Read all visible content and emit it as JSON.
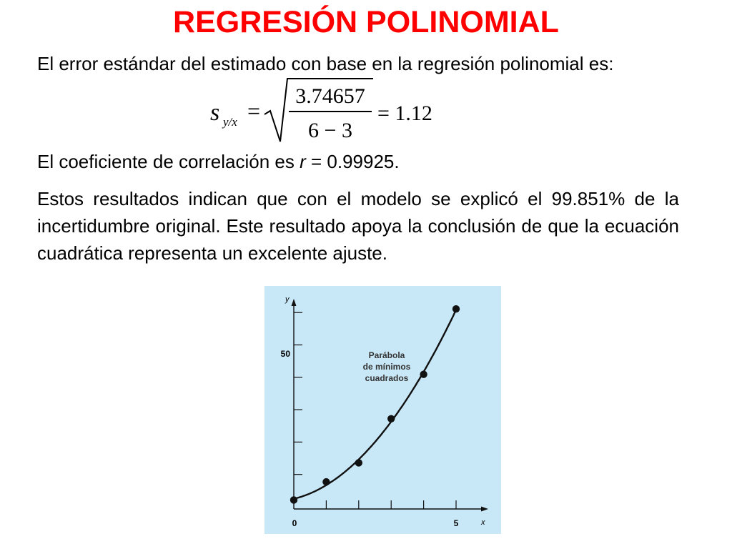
{
  "slide": {
    "title": "REGRESIÓN POLINOMIAL",
    "p1": "El error estándar del estimado con base en la regresión polinomial es:",
    "p2_prefix": "El coeficiente de correlación es ",
    "p2_var": "r",
    "p2_suffix": " = 0.99925.",
    "p3": "Estos resultados indican que con el modelo se explicó el 99.851% de la  incertidumbre original. Este resultado apoya la conclusión de que la ecuación cuadrática representa un excelente ajuste."
  },
  "formula": {
    "lhs_symbol": "s",
    "lhs_subscript": "y/x",
    "equals": "=",
    "numerator": "3.74657",
    "denominator": "6 − 3",
    "result": "= 1.12"
  },
  "chart_data": {
    "type": "scatter",
    "xlabel": "x",
    "ylabel": "y",
    "x_tick_labels": [
      "0",
      "5"
    ],
    "y_tick_labels": [
      "50"
    ],
    "xlim": [
      0,
      5.5
    ],
    "ylim": [
      0,
      65
    ],
    "annotation": "Parábola\nde mínimos\ncuadrados",
    "points": [
      {
        "x": 0,
        "y": 2.1
      },
      {
        "x": 1,
        "y": 7.7
      },
      {
        "x": 2,
        "y": 13.6
      },
      {
        "x": 3,
        "y": 27.2
      },
      {
        "x": 4,
        "y": 40.9
      },
      {
        "x": 5,
        "y": 61.1
      }
    ],
    "curve": {
      "a0": 2.47857,
      "a1": 2.35929,
      "a2": 1.86071
    },
    "colors": {
      "background": "#c9e8f7",
      "marks": "#111111"
    }
  }
}
